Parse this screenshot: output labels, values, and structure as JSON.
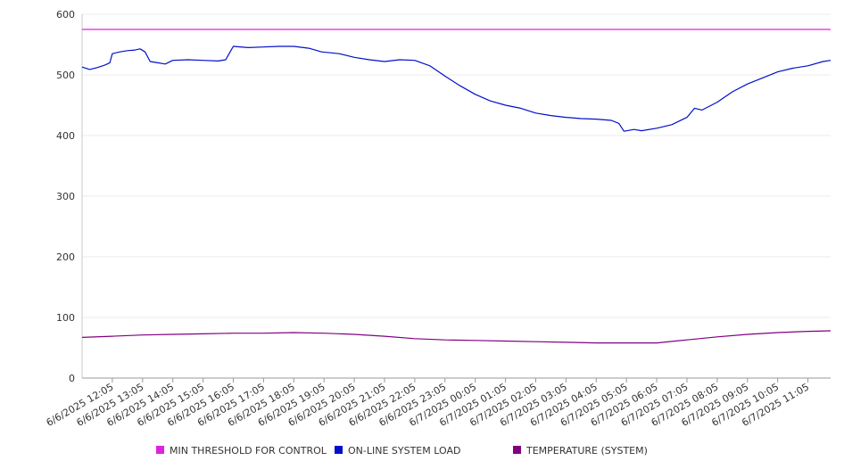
{
  "chart_data": {
    "type": "line",
    "title": "",
    "xlabel": "",
    "ylabel": "",
    "ylim": [
      0,
      600
    ],
    "yticks": [
      0,
      100,
      200,
      300,
      400,
      500,
      600
    ],
    "grid": true,
    "legend_position": "bottom",
    "x_tick_labels": [
      "6/6/2025 12:05",
      "6/6/2025 13:05",
      "6/6/2025 14:05",
      "6/6/2025 15:05",
      "6/6/2025 16:05",
      "6/6/2025 17:05",
      "6/6/2025 18:05",
      "6/6/2025 19:05",
      "6/6/2025 20:05",
      "6/6/2025 21:05",
      "6/6/2025 22:05",
      "6/6/2025 23:05",
      "6/7/2025 00:05",
      "6/7/2025 01:05",
      "6/7/2025 02:05",
      "6/7/2025 03:05",
      "6/7/2025 04:05",
      "6/7/2025 05:05",
      "6/7/2025 06:05",
      "6/7/2025 07:05",
      "6/7/2025 08:05",
      "6/7/2025 09:05",
      "6/7/2025 10:05",
      "6/7/2025 11:05"
    ],
    "x_range": [
      "6/6/2025 11:05",
      "6/7/2025 11:50"
    ],
    "series": [
      {
        "name": "MIN THRESHOLD FOR CONTROL",
        "color": "#e020e0",
        "points": [
          [
            "6/6/2025 11:05",
            575
          ],
          [
            "6/7/2025 11:50",
            575
          ]
        ]
      },
      {
        "name": "ON-LINE SYSTEM LOAD",
        "color": "#0010c8",
        "points": [
          [
            "6/6/2025 11:05",
            513
          ],
          [
            "6/6/2025 11:20",
            509
          ],
          [
            "6/6/2025 11:35",
            512
          ],
          [
            "6/6/2025 11:50",
            516
          ],
          [
            "6/6/2025 12:00",
            520
          ],
          [
            "6/6/2025 12:05",
            535
          ],
          [
            "6/6/2025 12:20",
            538
          ],
          [
            "6/6/2025 12:35",
            540
          ],
          [
            "6/6/2025 12:50",
            541
          ],
          [
            "6/6/2025 13:00",
            543
          ],
          [
            "6/6/2025 13:10",
            538
          ],
          [
            "6/6/2025 13:20",
            522
          ],
          [
            "6/6/2025 13:35",
            520
          ],
          [
            "6/6/2025 13:50",
            518
          ],
          [
            "6/6/2025 14:05",
            524
          ],
          [
            "6/6/2025 14:35",
            525
          ],
          [
            "6/6/2025 15:05",
            524
          ],
          [
            "6/6/2025 15:35",
            523
          ],
          [
            "6/6/2025 15:50",
            525
          ],
          [
            "6/6/2025 16:00",
            540
          ],
          [
            "6/6/2025 16:05",
            547
          ],
          [
            "6/6/2025 16:35",
            545
          ],
          [
            "6/6/2025 17:05",
            546
          ],
          [
            "6/6/2025 17:35",
            547
          ],
          [
            "6/6/2025 18:05",
            547
          ],
          [
            "6/6/2025 18:35",
            544
          ],
          [
            "6/6/2025 19:00",
            538
          ],
          [
            "6/6/2025 19:35",
            535
          ],
          [
            "6/6/2025 20:05",
            529
          ],
          [
            "6/6/2025 20:35",
            525
          ],
          [
            "6/6/2025 21:05",
            522
          ],
          [
            "6/6/2025 21:35",
            525
          ],
          [
            "6/6/2025 22:05",
            524
          ],
          [
            "6/6/2025 22:35",
            515
          ],
          [
            "6/6/2025 23:05",
            498
          ],
          [
            "6/6/2025 23:35",
            482
          ],
          [
            "6/7/2025 00:05",
            468
          ],
          [
            "6/7/2025 00:35",
            457
          ],
          [
            "6/7/2025 01:05",
            450
          ],
          [
            "6/7/2025 01:35",
            445
          ],
          [
            "6/7/2025 02:05",
            437
          ],
          [
            "6/7/2025 02:35",
            433
          ],
          [
            "6/7/2025 03:05",
            430
          ],
          [
            "6/7/2025 03:35",
            428
          ],
          [
            "6/7/2025 04:05",
            427
          ],
          [
            "6/7/2025 04:35",
            425
          ],
          [
            "6/7/2025 04:50",
            420
          ],
          [
            "6/7/2025 05:00",
            407
          ],
          [
            "6/7/2025 05:20",
            410
          ],
          [
            "6/7/2025 05:35",
            408
          ],
          [
            "6/7/2025 06:05",
            412
          ],
          [
            "6/7/2025 06:35",
            418
          ],
          [
            "6/7/2025 07:05",
            430
          ],
          [
            "6/7/2025 07:20",
            445
          ],
          [
            "6/7/2025 07:35",
            442
          ],
          [
            "6/7/2025 08:05",
            455
          ],
          [
            "6/7/2025 08:35",
            472
          ],
          [
            "6/7/2025 09:05",
            485
          ],
          [
            "6/7/2025 09:35",
            495
          ],
          [
            "6/7/2025 10:05",
            505
          ],
          [
            "6/7/2025 10:35",
            511
          ],
          [
            "6/7/2025 11:05",
            515
          ],
          [
            "6/7/2025 11:35",
            522
          ],
          [
            "6/7/2025 11:50",
            524
          ]
        ]
      },
      {
        "name": "TEMPERATURE (SYSTEM)",
        "color": "#800080",
        "points": [
          [
            "6/6/2025 11:05",
            67
          ],
          [
            "6/6/2025 12:05",
            69
          ],
          [
            "6/6/2025 13:05",
            71
          ],
          [
            "6/6/2025 14:05",
            72
          ],
          [
            "6/6/2025 15:05",
            73
          ],
          [
            "6/6/2025 16:05",
            74
          ],
          [
            "6/6/2025 17:05",
            74
          ],
          [
            "6/6/2025 18:05",
            75
          ],
          [
            "6/6/2025 19:05",
            74
          ],
          [
            "6/6/2025 20:05",
            72
          ],
          [
            "6/6/2025 21:05",
            69
          ],
          [
            "6/6/2025 22:05",
            65
          ],
          [
            "6/6/2025 23:05",
            63
          ],
          [
            "6/7/2025 00:05",
            62
          ],
          [
            "6/7/2025 01:05",
            61
          ],
          [
            "6/7/2025 02:05",
            60
          ],
          [
            "6/7/2025 03:05",
            59
          ],
          [
            "6/7/2025 04:05",
            58
          ],
          [
            "6/7/2025 05:05",
            58
          ],
          [
            "6/7/2025 06:05",
            58
          ],
          [
            "6/7/2025 07:05",
            63
          ],
          [
            "6/7/2025 08:05",
            68
          ],
          [
            "6/7/2025 09:05",
            72
          ],
          [
            "6/7/2025 10:05",
            75
          ],
          [
            "6/7/2025 11:05",
            77
          ],
          [
            "6/7/2025 11:50",
            78
          ]
        ]
      }
    ]
  }
}
